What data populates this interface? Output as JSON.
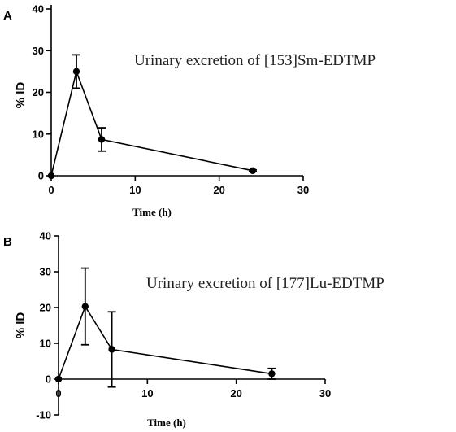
{
  "chart_data": [
    {
      "type": "line",
      "panel": "A",
      "annotation": "Urinary excretion of  [153]Sm-EDTMP",
      "xlabel": "Time (h)",
      "ylabel": "% ID",
      "xlim": [
        0,
        30
      ],
      "ylim": [
        0,
        40
      ],
      "xticks": [
        0,
        10,
        20,
        30
      ],
      "yticks": [
        0,
        10,
        20,
        30,
        40
      ],
      "grid": false,
      "legend": "none",
      "series": [
        {
          "x": [
            0,
            3,
            6,
            24
          ],
          "y": [
            0,
            25,
            8.7,
            1.2
          ],
          "err": [
            0,
            4.0,
            2.8,
            0.2
          ]
        }
      ]
    },
    {
      "type": "line",
      "panel": "B",
      "annotation": "Urinary excretion of [177]Lu-EDTMP",
      "xlabel": "Time (h)",
      "ylabel": "% ID",
      "xlim": [
        0,
        30
      ],
      "ylim": [
        -10,
        40
      ],
      "xticks": [
        0,
        10,
        20,
        30
      ],
      "yticks": [
        -10,
        0,
        10,
        20,
        30,
        40
      ],
      "grid": false,
      "legend": "none",
      "series": [
        {
          "x": [
            0,
            3,
            6,
            24
          ],
          "y": [
            0,
            20.3,
            8.3,
            1.5
          ],
          "err": [
            0,
            10.7,
            10.5,
            1.5
          ]
        }
      ]
    }
  ]
}
